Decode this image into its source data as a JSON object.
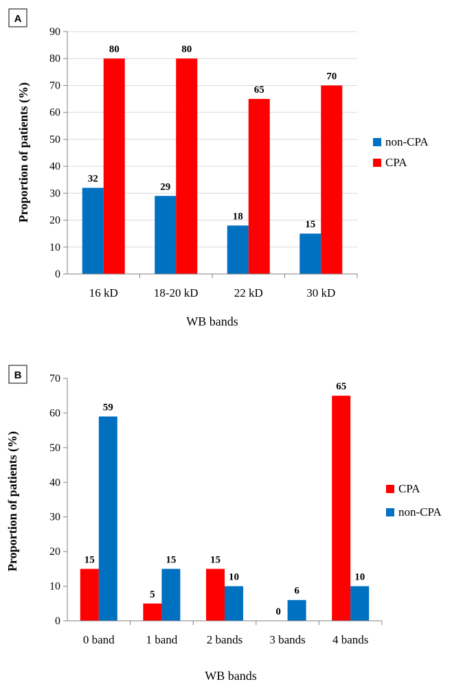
{
  "chart_data": [
    {
      "panel": "A",
      "type": "bar",
      "categories": [
        "16 kD",
        "18-20 kD",
        "22 kD",
        "30 kD"
      ],
      "series": [
        {
          "name": "non-CPA",
          "color": "#0070C0",
          "values": [
            32,
            29,
            18,
            15
          ]
        },
        {
          "name": "CPA",
          "color": "#FF0000",
          "values": [
            80,
            80,
            65,
            70
          ]
        }
      ],
      "xlabel": "WB bands",
      "ylabel": "Proportion of patients (%)",
      "ylim": [
        0,
        90
      ],
      "yticks": [
        0,
        10,
        20,
        30,
        40,
        50,
        60,
        70,
        80,
        90
      ],
      "grid": true,
      "legend": "right"
    },
    {
      "panel": "B",
      "type": "bar",
      "categories": [
        "0 band",
        "1 band",
        "2 bands",
        "3 bands",
        "4 bands"
      ],
      "series": [
        {
          "name": "CPA",
          "color": "#FF0000",
          "values": [
            15,
            5,
            15,
            0,
            65
          ]
        },
        {
          "name": "non-CPA",
          "color": "#0070C0",
          "values": [
            59,
            15,
            10,
            6,
            10
          ]
        }
      ],
      "xlabel": "WB bands",
      "ylabel": "Proportion of patients (%)",
      "ylim": [
        0,
        70
      ],
      "yticks": [
        0,
        10,
        20,
        30,
        40,
        50,
        60,
        70
      ],
      "grid": false,
      "legend": "right"
    }
  ]
}
